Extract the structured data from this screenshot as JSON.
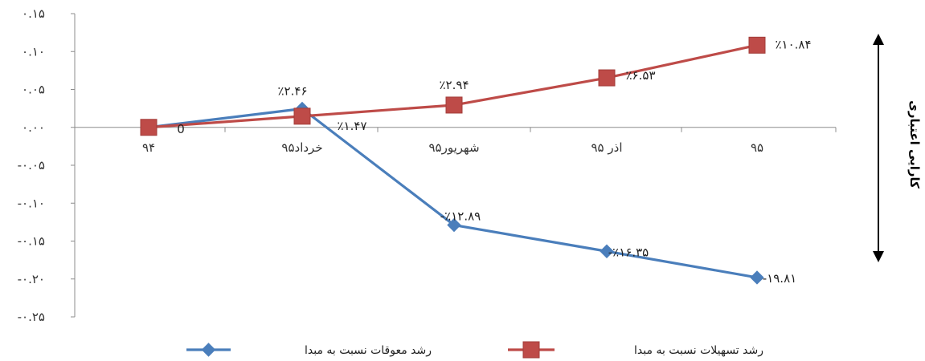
{
  "chart_data": {
    "type": "line",
    "categories": [
      "۹۴",
      "خرداد۹۵",
      "شهریور۹۵",
      "اذر ۹۵",
      "۹۵"
    ],
    "y_ticks": [
      {
        "value": 0.15,
        "label": "۰.۱۵"
      },
      {
        "value": 0.1,
        "label": "۰.۱۰"
      },
      {
        "value": 0.05,
        "label": "۰.۰۵"
      },
      {
        "value": 0.0,
        "label": "۰.۰۰"
      },
      {
        "value": -0.05,
        "label": "-۰.۰۵"
      },
      {
        "value": -0.1,
        "label": "-۰.۱۰"
      },
      {
        "value": -0.15,
        "label": "-۰.۱۵"
      },
      {
        "value": -0.2,
        "label": "-۰.۲۰"
      },
      {
        "value": -0.25,
        "label": "-۰.۲۵"
      }
    ],
    "ylim": [
      -0.25,
      0.15
    ],
    "grid": false,
    "legend_position": "bottom",
    "series": [
      {
        "name": "رشد معوقات نسبت به مبدا",
        "color": "#4a7ebb",
        "marker": "diamond",
        "values": [
          0,
          0.0246,
          -0.1289,
          -0.1635,
          -0.1981
        ],
        "labels": [
          "",
          "٪۲.۴۶",
          "-٪۱۲.۸۹",
          "-٪۱۶.۳۵",
          "-۱۹.۸۱"
        ]
      },
      {
        "name": "رشد تسهیلات نسبت به مبدا",
        "color": "#be4b48",
        "marker": "square",
        "values": [
          0,
          0.0147,
          0.0294,
          0.0653,
          0.1084
        ],
        "labels": [
          "0",
          "٪۱.۴۷",
          "٪۲.۹۴",
          "٪۶.۵۳",
          "٪۱۰.۸۴"
        ]
      }
    ],
    "side_label": "کارایی اعتباری"
  }
}
